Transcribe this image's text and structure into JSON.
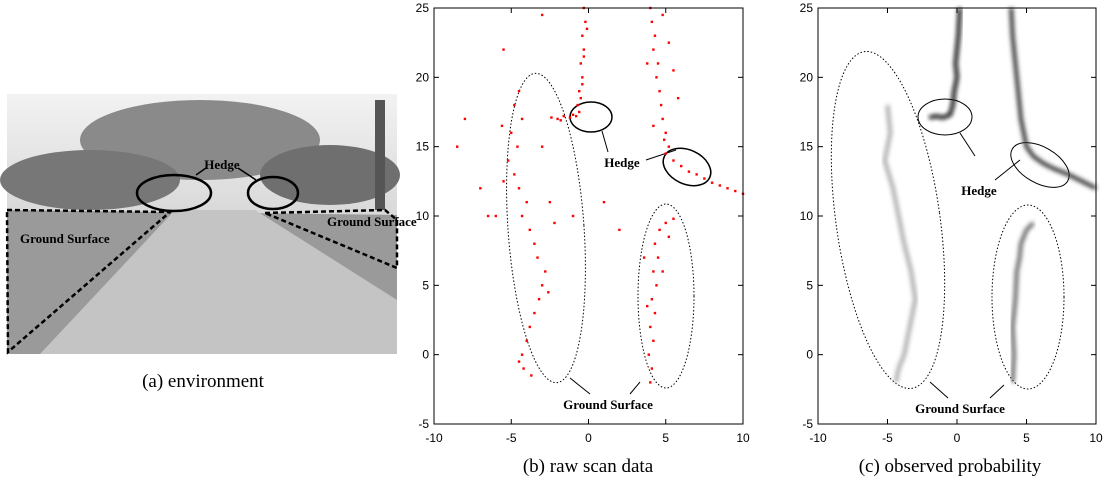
{
  "photo": {
    "caption": "(a) environment",
    "hedge_label": "Hedge",
    "ground_labels": [
      "Ground Surface",
      "Ground Surface"
    ]
  },
  "chart_data": [
    {
      "type": "scatter",
      "caption": "(b) raw scan data",
      "hedge_label": "Hedge",
      "ground_label": "Ground Surface",
      "xlim": [
        -10,
        10
      ],
      "ylim": [
        -5,
        25
      ],
      "xticks": [
        -10,
        -5,
        0,
        5,
        10
      ],
      "yticks": [
        -5,
        0,
        5,
        10,
        15,
        20,
        25
      ],
      "series": [
        {
          "color": "#ff0000",
          "x": [
            -0.3,
            -0.2,
            -0.4,
            -0.3,
            -0.5,
            -0.4,
            -0.6,
            -0.5,
            -0.7,
            -0.6,
            -0.8,
            -1.2,
            -1.6,
            -2.0,
            -2.4,
            -0.1,
            -0.3,
            -0.4,
            -1.0,
            -1.8,
            4.0,
            4.1,
            4.3,
            4.2,
            4.5,
            4.4,
            4.6,
            4.7,
            4.8,
            5.0,
            4.9,
            5.2,
            5.0,
            5.5,
            6.0,
            6.5,
            7.0,
            7.5,
            8.0,
            8.5,
            9.0,
            9.5,
            10,
            4.8,
            5.2,
            5.5,
            5.8,
            3.8,
            4.2,
            -4.5,
            -4.8,
            -4.3,
            -5.0,
            -4.6,
            -5.2,
            -4.8,
            -4.5,
            -4.0,
            -4.3,
            -3.8,
            -3.5,
            -3.3,
            -2.8,
            -3.0,
            -3.2,
            -3.5,
            -3.8,
            -4.0,
            -4.3,
            -4.5,
            -4.2,
            -5.6,
            -5.5,
            -2.5,
            -2.2,
            -6.0,
            -3.0,
            -2.6,
            -3.7,
            4.0,
            4.1,
            3.9,
            4.2,
            4.0,
            4.3,
            4.1,
            4.4,
            4.2,
            4.5,
            4.3,
            4.6,
            5.0,
            5.5,
            3.6,
            4.8,
            3.8,
            5.2,
            -8.5,
            -7,
            -8,
            -6.5,
            -3,
            -5.5,
            2,
            1,
            -1
          ],
          "y": [
            25,
            24,
            23,
            22,
            21,
            20,
            19,
            18.5,
            18,
            17.5,
            17.2,
            17.1,
            17.2,
            17.0,
            17.1,
            23.5,
            21.5,
            19.5,
            17.3,
            16.9,
            25,
            24,
            23,
            22,
            21,
            20,
            19,
            18,
            17,
            16,
            15.5,
            15,
            14.5,
            14,
            13.6,
            13.2,
            13,
            12.7,
            12.4,
            12.2,
            12,
            11.8,
            11.6,
            24.5,
            22.5,
            20.5,
            18.5,
            21,
            16.5,
            19,
            18,
            17,
            16,
            15,
            14,
            13,
            12,
            11,
            10,
            9,
            8,
            7,
            6,
            5,
            4,
            3,
            2,
            1,
            0,
            -0.5,
            -1,
            16.5,
            12.5,
            11,
            9.5,
            10,
            15,
            4.5,
            -1.5,
            -2,
            -1,
            0,
            1,
            2,
            3,
            4,
            5,
            6,
            7,
            8,
            9,
            9.5,
            9.8,
            7,
            6,
            3.5,
            8.5,
            15,
            12,
            17,
            10,
            24.5,
            22,
            9,
            11,
            10
          ]
        }
      ]
    },
    {
      "type": "density",
      "caption": "(c) observed probability",
      "hedge_label": "Hedge",
      "ground_label": "Ground Surface",
      "xlim": [
        -10,
        10
      ],
      "ylim": [
        -5,
        25
      ],
      "xticks": [
        -10,
        -5,
        0,
        5,
        10
      ],
      "yticks": [
        -5,
        0,
        5,
        10,
        15,
        20,
        25
      ],
      "series": [
        {
          "color": "#111111",
          "x": [
            0.2,
            0.1,
            -0.1,
            0,
            -0.2,
            -0.3,
            -0.5,
            -1,
            -1.5,
            -2
          ],
          "y": [
            25,
            23,
            21,
            20,
            19,
            18,
            17.3,
            17.1,
            17.2,
            17.1
          ]
        },
        {
          "color": "#333333",
          "x": [
            3.9,
            4,
            4.2,
            4.4,
            4.6,
            4.8,
            5.0,
            5.5,
            6.2,
            7,
            8,
            9,
            10
          ],
          "y": [
            25,
            23,
            21,
            19,
            17,
            16,
            15,
            14.3,
            13.8,
            13.4,
            13,
            12.5,
            12
          ]
        },
        {
          "color": "#aaaaaa",
          "x": [
            -5,
            -4.8,
            -5.2,
            -4.6,
            -4.2,
            -3.8,
            -3.3,
            -3,
            -3.4,
            -3.8,
            -4.2,
            -4.4
          ],
          "y": [
            18,
            16,
            14,
            12,
            10,
            8,
            6,
            4,
            2,
            0,
            -1,
            -2
          ]
        },
        {
          "color": "#666666",
          "x": [
            4,
            4.1,
            4,
            4.2,
            4.3,
            4.5,
            4.6,
            5,
            5.5
          ],
          "y": [
            -2,
            0,
            2,
            4,
            6,
            7,
            8,
            9,
            9.5
          ]
        }
      ]
    }
  ]
}
